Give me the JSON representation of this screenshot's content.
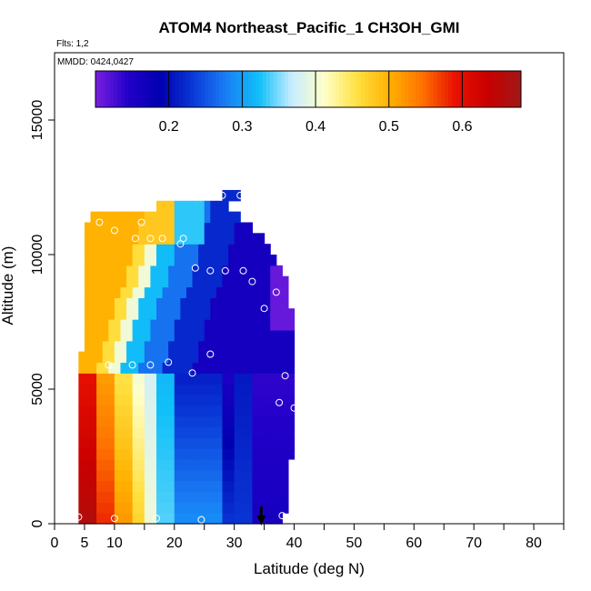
{
  "chart_data": {
    "type": "heatmap",
    "title": "ATOM4 Northeast_Pacific_1 CH3OH_GMI",
    "flights_text": "Flts: 1,2",
    "mmdd_text": "MMDD: 0424,0427",
    "xlabel": "Latitude (deg N)",
    "ylabel": "Altitude (m)",
    "xlim": [
      0,
      85
    ],
    "ylim": [
      0,
      17500
    ],
    "x_ticks": [
      0,
      5,
      10,
      20,
      30,
      40,
      50,
      60,
      70,
      80
    ],
    "x_tick_labels": [
      "0",
      "5",
      "10",
      "20",
      "30",
      "40",
      "50",
      "60",
      "70",
      "80"
    ],
    "x_minor_ticks": [
      15,
      25,
      35,
      45,
      55,
      65,
      75,
      85
    ],
    "y_ticks": [
      0,
      5000,
      10000,
      15000
    ],
    "y_tick_labels": [
      "0",
      "5000",
      "10000",
      "15000"
    ],
    "colorbar": {
      "min": 0.1,
      "max": 0.68,
      "ticks": [
        0.2,
        0.3,
        0.4,
        0.5,
        0.6
      ],
      "tick_labels": [
        "0.2",
        "0.3",
        "0.4",
        "0.5",
        "0.6"
      ],
      "colors": [
        "#7a1fe0",
        "#2200c8",
        "#0000b0",
        "#0a3ad8",
        "#1a7ff5",
        "#10c0f8",
        "#c8ecff",
        "#ffffc8",
        "#ffe040",
        "#ffb000",
        "#ff7000",
        "#e81000",
        "#c80000",
        "#a01818"
      ]
    },
    "grid_lat_step": 1,
    "grid_alt_step": 400,
    "profile": {
      "lat_start": 4,
      "alt_bins": [
        0,
        400,
        800,
        1200,
        1600,
        2000,
        2400,
        2800,
        3200,
        3600,
        4000,
        4400,
        4800,
        5200,
        5600,
        6000,
        6400,
        6800,
        7200,
        7600,
        8000,
        8400,
        8800,
        9200,
        9600,
        10000,
        10400,
        10800,
        11200,
        11600,
        12000
      ],
      "lat_min": [
        4,
        4,
        4,
        4,
        4,
        4,
        4,
        4,
        4,
        4,
        4,
        4,
        4,
        4,
        4,
        4,
        5,
        5,
        5,
        5,
        5,
        5,
        5,
        5,
        5,
        5,
        5,
        5,
        6,
        17,
        28
      ],
      "lat_max": [
        38,
        39,
        39,
        39,
        39,
        39,
        40,
        40,
        40,
        40,
        40,
        40,
        40,
        40,
        40,
        40,
        40,
        40,
        40,
        40,
        39,
        39,
        39,
        38,
        37,
        36,
        35,
        33,
        31,
        29,
        31
      ]
    },
    "points": [
      {
        "lat": 4,
        "alt": 250
      },
      {
        "lat": 10,
        "alt": 200
      },
      {
        "lat": 17,
        "alt": 200
      },
      {
        "lat": 24.5,
        "alt": 150
      },
      {
        "lat": 38,
        "alt": 300
      },
      {
        "lat": 40,
        "alt": 4300
      },
      {
        "lat": 37.5,
        "alt": 4500
      },
      {
        "lat": 38.5,
        "alt": 5500
      },
      {
        "lat": 23,
        "alt": 5600
      },
      {
        "lat": 9,
        "alt": 5900
      },
      {
        "lat": 13,
        "alt": 5900
      },
      {
        "lat": 16,
        "alt": 5900
      },
      {
        "lat": 19,
        "alt": 6000
      },
      {
        "lat": 26,
        "alt": 6300
      },
      {
        "lat": 35,
        "alt": 8000
      },
      {
        "lat": 37,
        "alt": 8600
      },
      {
        "lat": 33,
        "alt": 9000
      },
      {
        "lat": 23.5,
        "alt": 9500
      },
      {
        "lat": 26,
        "alt": 9400
      },
      {
        "lat": 28.5,
        "alt": 9400
      },
      {
        "lat": 31.5,
        "alt": 9400
      },
      {
        "lat": 21,
        "alt": 10400
      },
      {
        "lat": 21.5,
        "alt": 10600
      },
      {
        "lat": 13.5,
        "alt": 10600
      },
      {
        "lat": 16,
        "alt": 10600
      },
      {
        "lat": 18,
        "alt": 10600
      },
      {
        "lat": 10,
        "alt": 10900
      },
      {
        "lat": 7.5,
        "alt": 11200
      },
      {
        "lat": 14.5,
        "alt": 11200
      },
      {
        "lat": 28,
        "alt": 12200
      },
      {
        "lat": 31,
        "alt": 12200
      }
    ],
    "arrow_lat": 34.5
  }
}
